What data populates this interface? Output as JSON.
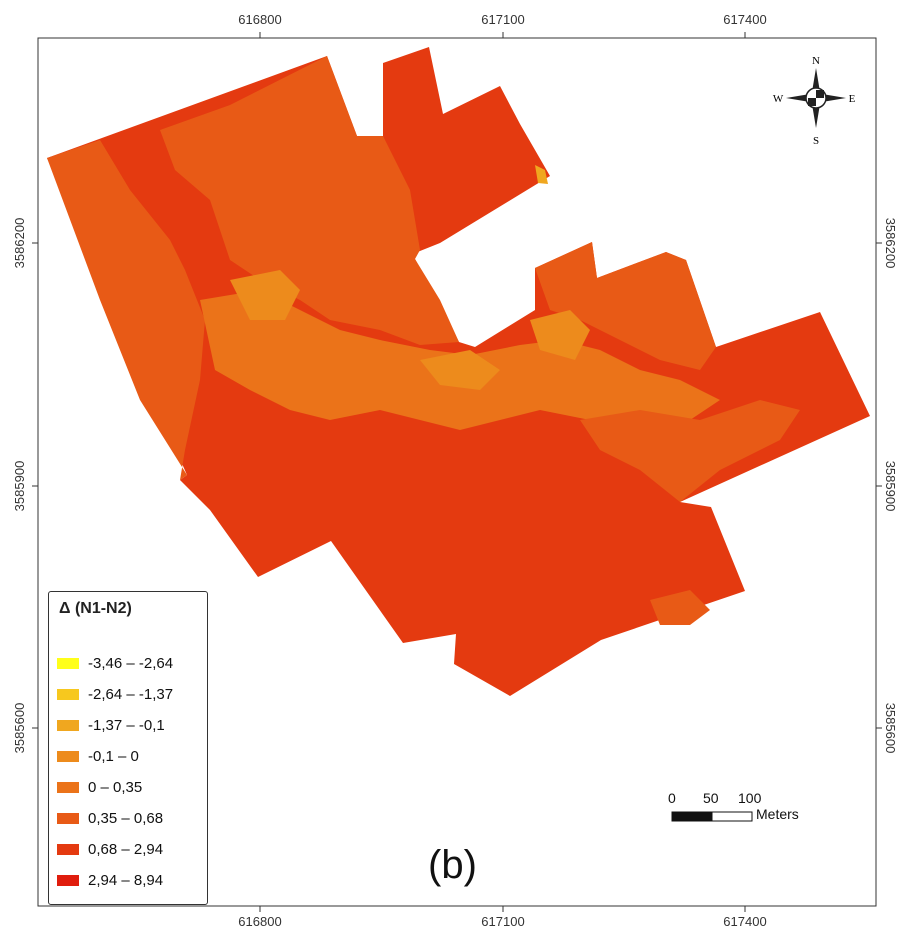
{
  "map": {
    "x_ticks": [
      "616800",
      "617100",
      "617400"
    ],
    "y_ticks": [
      "3586200",
      "3585900",
      "3585600"
    ],
    "panel_label": "(b)"
  },
  "north_arrow": {
    "n": "N",
    "s": "S",
    "e": "E",
    "w": "W"
  },
  "scale_bar": {
    "labels": [
      "0",
      "50",
      "100"
    ],
    "units": "Meters"
  },
  "legend": {
    "title": "Δ (N1-N2)",
    "classes": [
      {
        "label": "-3,46 – -2,64",
        "color": "#ffff1a"
      },
      {
        "label": "-2,64 – -1,37",
        "color": "#f7c81e"
      },
      {
        "label": "-1,37 – -0,1",
        "color": "#f0a71f"
      },
      {
        "label": "-0,1 – 0",
        "color": "#ed8b1c"
      },
      {
        "label": "0 – 0,35",
        "color": "#eb7319"
      },
      {
        "label": "0,35 – 0,68",
        "color": "#e85a16"
      },
      {
        "label": "0,68 – 2,94",
        "color": "#e43a10"
      },
      {
        "label": "2,94 – 8,94",
        "color": "#e01d0d"
      }
    ]
  }
}
